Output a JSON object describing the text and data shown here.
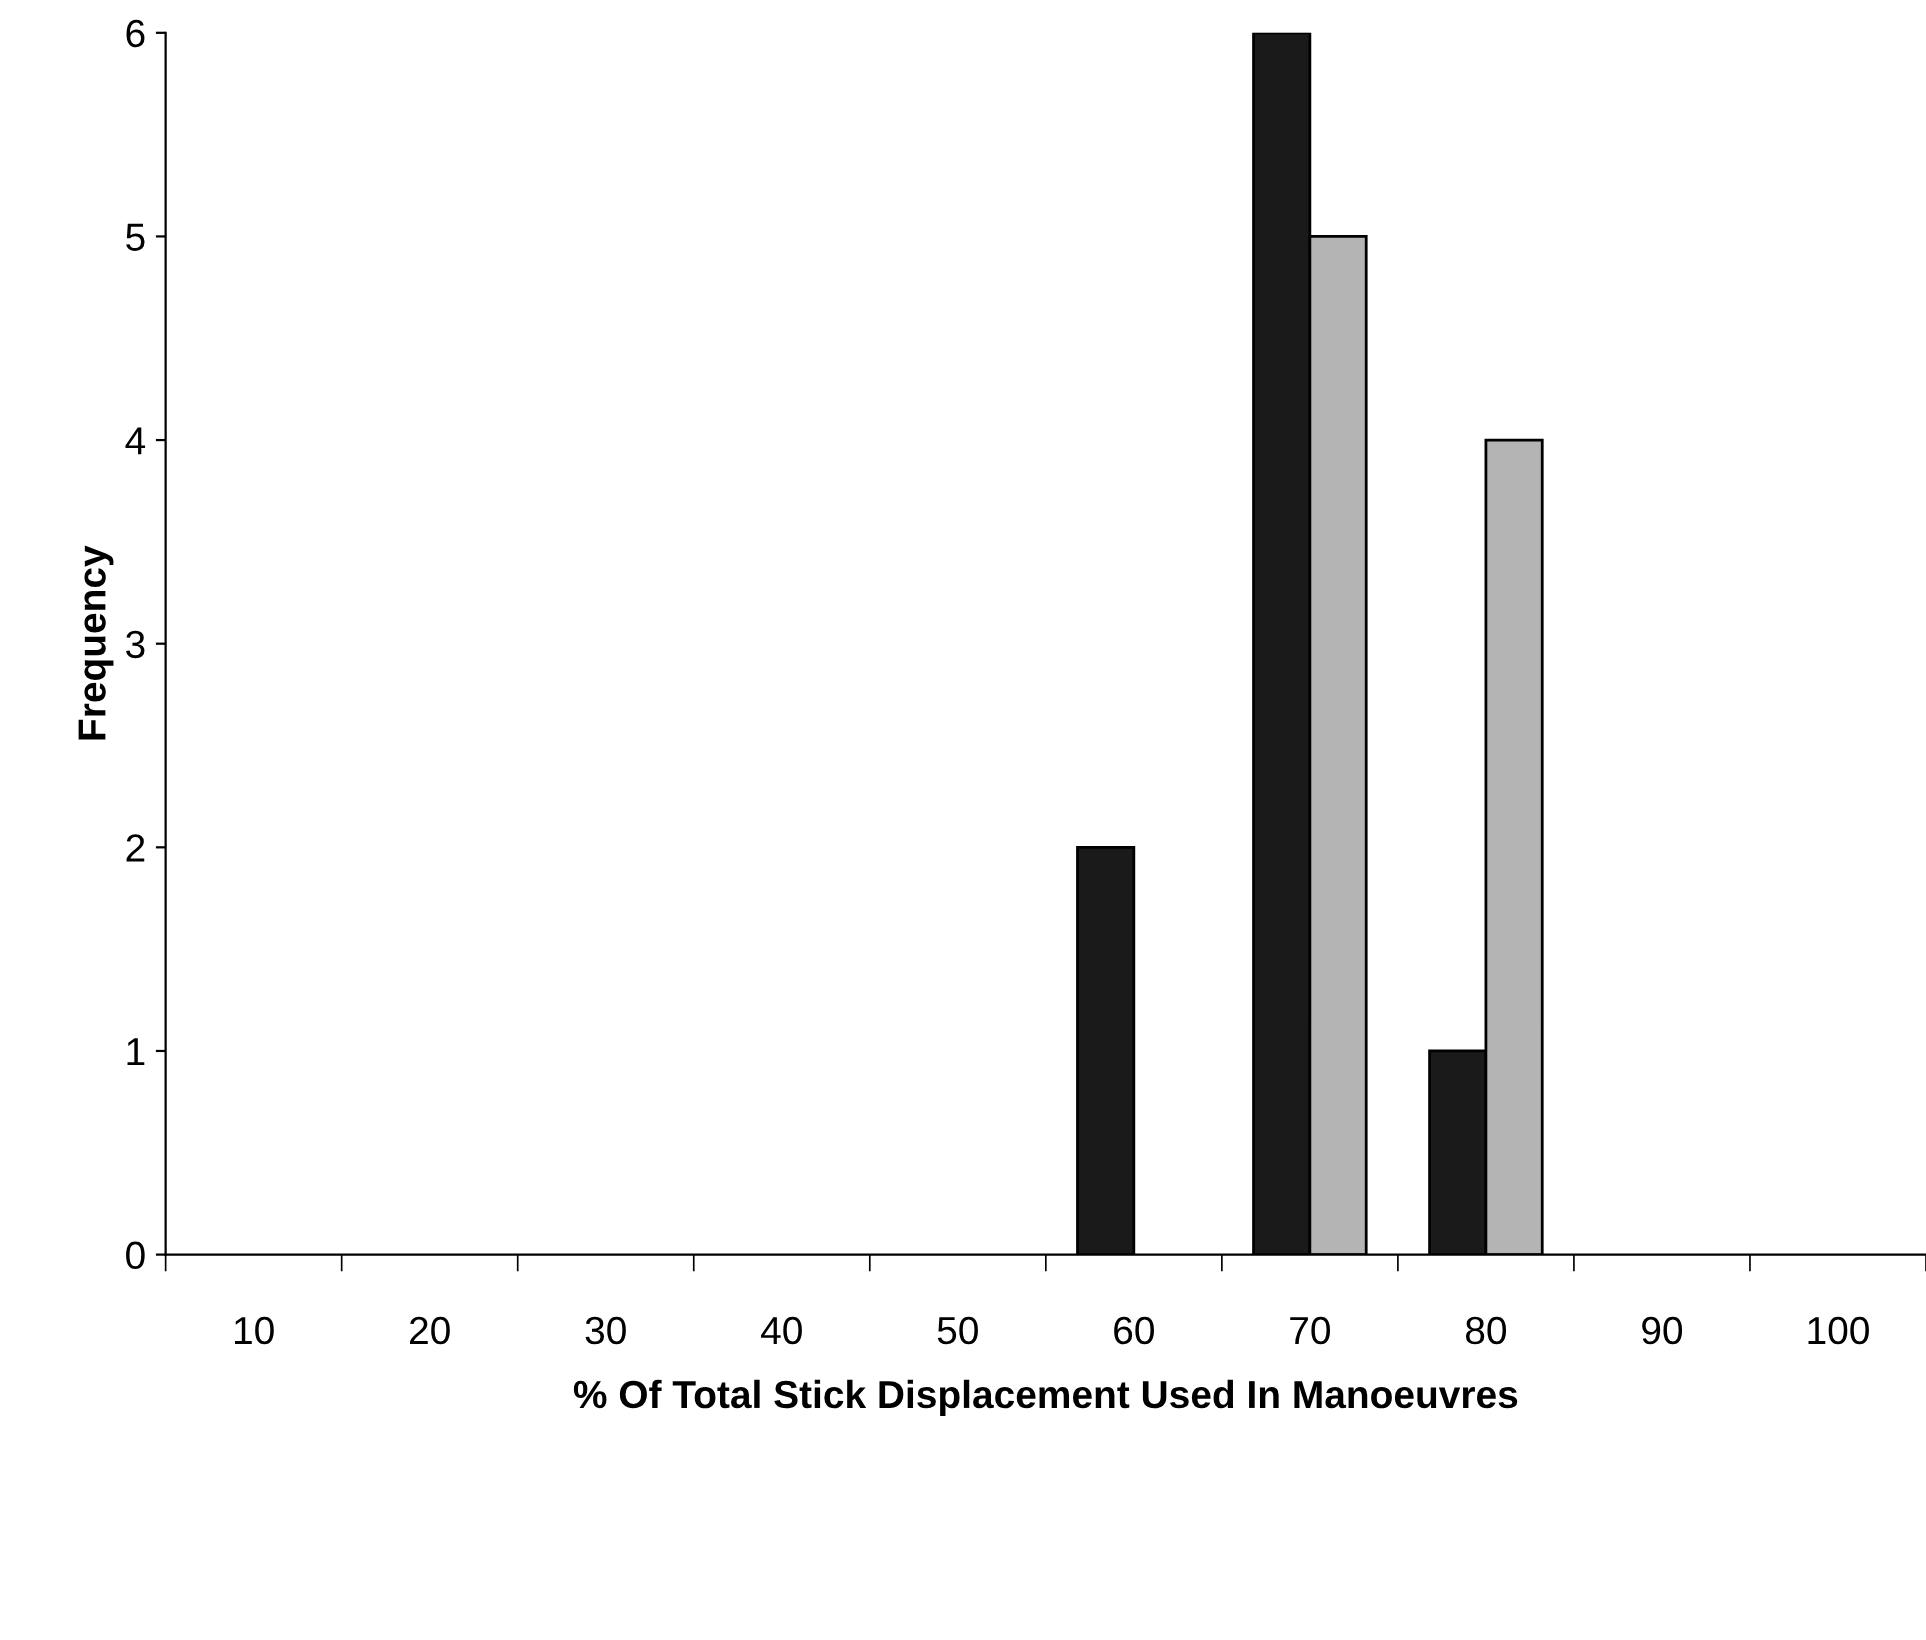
{
  "chart_data": {
    "type": "bar",
    "xlabel": "% Of Total Stick Displacement Used In Manoeuvres",
    "ylabel": "Frequency",
    "categories": [
      "10",
      "20",
      "30",
      "40",
      "50",
      "60",
      "70",
      "80",
      "90",
      "100"
    ],
    "series": [
      {
        "color": "#1a1a1a",
        "values": [
          0,
          0,
          0,
          0,
          0,
          2,
          6,
          1,
          0,
          0
        ]
      },
      {
        "color": "#b4b4b4",
        "values": [
          0,
          0,
          0,
          0,
          0,
          0,
          5,
          4,
          0,
          0
        ]
      }
    ],
    "ylim": [
      0,
      6
    ],
    "yticks": [
      0,
      1,
      2,
      3,
      4,
      5,
      6
    ],
    "grid": false
  }
}
